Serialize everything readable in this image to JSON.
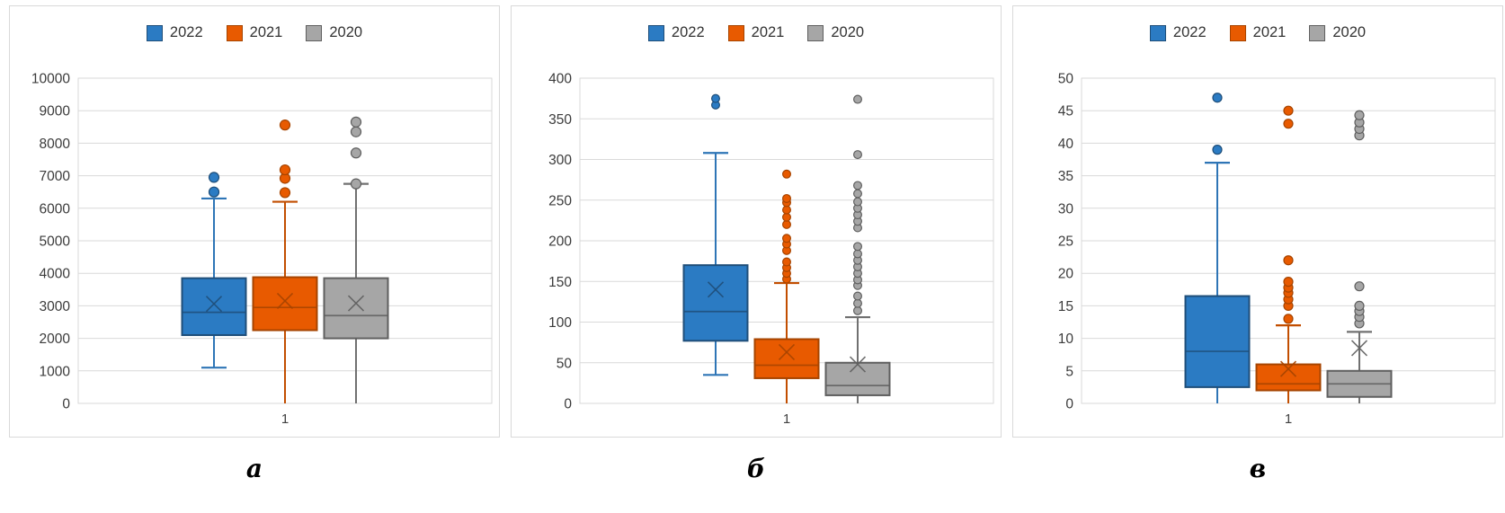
{
  "colors": {
    "blue": {
      "fill": "#2B7BC3",
      "stroke": "#1F4E79",
      "whisker": "#2E75B6"
    },
    "orange": {
      "fill": "#E85A00",
      "stroke": "#A64400",
      "whisker": "#C24E00"
    },
    "gray": {
      "fill": "#A6A6A6",
      "stroke": "#5F5F5F",
      "whisker": "#707070"
    }
  },
  "legend": {
    "items": [
      {
        "label": "2022",
        "color_key": "blue"
      },
      {
        "label": "2021",
        "color_key": "orange"
      },
      {
        "label": "2020",
        "color_key": "gray"
      }
    ]
  },
  "text_colors": {
    "ticks": "#3b3b3b",
    "x_tick": "#404040"
  },
  "grid_color": "#d9d9d9",
  "chart_data": [
    {
      "type": "box",
      "panel_label": "а",
      "x_tick": "1",
      "ylim": [
        0,
        10000
      ],
      "yticks": [
        0,
        1000,
        2000,
        3000,
        4000,
        5000,
        6000,
        7000,
        8000,
        9000,
        10000
      ],
      "grid": true,
      "legend_position": "top",
      "dot_radius": 5.5,
      "series": [
        {
          "name": "2022",
          "color_key": "blue",
          "whisker_low": 1100,
          "q1": 2100,
          "median": 2800,
          "mean": 3060,
          "q3": 3850,
          "whisker_high": 6300,
          "outliers": [
            6500,
            6950
          ]
        },
        {
          "name": "2021",
          "color_key": "orange",
          "whisker_low": 0,
          "q1": 2250,
          "median": 2950,
          "mean": 3150,
          "q3": 3880,
          "whisker_high": 6200,
          "outliers": [
            6480,
            6920,
            7180,
            8560
          ]
        },
        {
          "name": "2020",
          "color_key": "gray",
          "whisker_low": 0,
          "q1": 2000,
          "median": 2700,
          "mean": 3080,
          "q3": 3850,
          "whisker_high": 6750,
          "outliers": [
            6750,
            7700,
            8350,
            8650
          ]
        }
      ]
    },
    {
      "type": "box",
      "panel_label": "б",
      "x_tick": "1",
      "ylim": [
        0,
        400
      ],
      "yticks": [
        0,
        50,
        100,
        150,
        200,
        250,
        300,
        350,
        400
      ],
      "grid": true,
      "legend_position": "top",
      "dot_radius": 4.4,
      "series": [
        {
          "name": "2022",
          "color_key": "blue",
          "whisker_low": 35,
          "q1": 77,
          "median": 113,
          "mean": 140,
          "q3": 170,
          "whisker_high": 308,
          "outliers": [
            367,
            375
          ]
        },
        {
          "name": "2021",
          "color_key": "orange",
          "whisker_low": 0,
          "q1": 31,
          "median": 47,
          "mean": 63,
          "q3": 79,
          "whisker_high": 148,
          "outliers": [
            153,
            160,
            167,
            174,
            188,
            196,
            203,
            220,
            229,
            238,
            247,
            252,
            282
          ]
        },
        {
          "name": "2020",
          "color_key": "gray",
          "whisker_low": 0,
          "q1": 10,
          "median": 22,
          "mean": 48,
          "q3": 50,
          "whisker_high": 106,
          "outliers": [
            114,
            123,
            132,
            145,
            152,
            160,
            168,
            176,
            184,
            193,
            216,
            224,
            232,
            240,
            248,
            258,
            268,
            306,
            374
          ]
        }
      ]
    },
    {
      "type": "box",
      "panel_label": "в",
      "x_tick": "1",
      "ylim": [
        0,
        50
      ],
      "yticks": [
        0,
        5,
        10,
        15,
        20,
        25,
        30,
        35,
        40,
        45,
        50
      ],
      "grid": true,
      "legend_position": "top",
      "dot_radius": 5,
      "series": [
        {
          "name": "2022",
          "color_key": "blue",
          "whisker_low": 0,
          "q1": 2.5,
          "median": 8,
          "mean": null,
          "q3": 16.5,
          "whisker_high": 37,
          "outliers": [
            39,
            47
          ]
        },
        {
          "name": "2021",
          "color_key": "orange",
          "whisker_low": 0,
          "q1": 2,
          "median": 3,
          "mean": 5.3,
          "q3": 6,
          "whisker_high": 12,
          "outliers": [
            13,
            15,
            16,
            17,
            17.8,
            18.7,
            22,
            43,
            45
          ]
        },
        {
          "name": "2020",
          "color_key": "gray",
          "whisker_low": 0,
          "q1": 1,
          "median": 3,
          "mean": 8.5,
          "q3": 5,
          "whisker_high": 11,
          "outliers": [
            12.3,
            13.3,
            14.2,
            15,
            18,
            41.2,
            42.2,
            43.2,
            44.3
          ]
        }
      ]
    }
  ]
}
